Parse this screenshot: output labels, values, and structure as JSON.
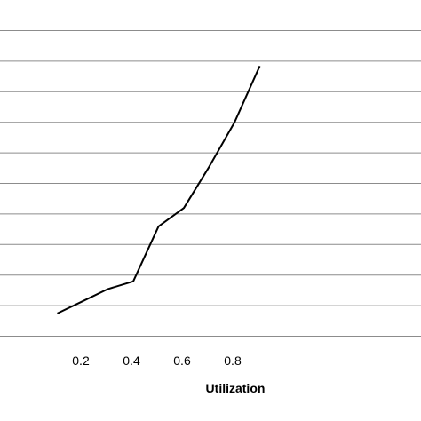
{
  "chart_data": {
    "type": "line",
    "title": "",
    "xlabel": "Utilization",
    "ylabel": "",
    "x_ticks": [
      "0.2",
      "0.4",
      "0.6",
      "0.8"
    ],
    "x_tick_values": [
      0.2,
      0.4,
      0.6,
      0.8
    ],
    "xlim": [
      0.0,
      0.9
    ],
    "grid": "horizontal",
    "gridline_count": 11,
    "series": [
      {
        "x": [
          0.1,
          0.2,
          0.3,
          0.4,
          0.5,
          0.6,
          0.7,
          0.8,
          0.9
        ],
        "y": [
          0.7,
          1.1,
          1.5,
          1.75,
          3.55,
          4.15,
          5.5,
          6.95,
          8.8
        ],
        "color": "#000000"
      }
    ],
    "ylim": [
      0,
      10
    ]
  }
}
